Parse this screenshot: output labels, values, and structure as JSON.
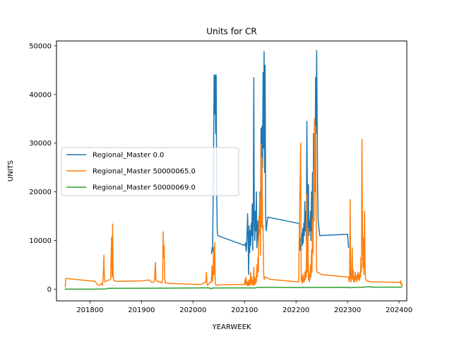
{
  "chart_data": {
    "type": "line",
    "title": "Units for CR",
    "xlabel": "YEARWEEK",
    "ylabel": "UNITS",
    "xlim": [
      201735,
      202415
    ],
    "ylim": [
      -2400,
      51000
    ],
    "xticks": [
      201800,
      201900,
      202000,
      202100,
      202200,
      202300,
      202400
    ],
    "xtick_labels": [
      "201800",
      "201900",
      "202000",
      "202100",
      "202200",
      "202300",
      "202400"
    ],
    "yticks": [
      0,
      10000,
      20000,
      30000,
      40000,
      50000
    ],
    "ytick_labels": [
      "0",
      "10000",
      "20000",
      "30000",
      "40000",
      "50000"
    ],
    "grid": false,
    "legend_position": "center-left",
    "series": [
      {
        "name": "Regional_Master 0.0",
        "color": "#1f77b4",
        "points": [
          [
            202036,
            7200
          ],
          [
            202037,
            8500
          ],
          [
            202038,
            7800
          ],
          [
            202039,
            18000
          ],
          [
            202040,
            30000
          ],
          [
            202041,
            44000
          ],
          [
            202042,
            36000
          ],
          [
            202043,
            44000
          ],
          [
            202044,
            32000
          ],
          [
            202045,
            44000
          ],
          [
            202046,
            20000
          ],
          [
            202047,
            12000
          ],
          [
            202048,
            11000
          ],
          [
            202100,
            9000
          ],
          [
            202102,
            9500
          ],
          [
            202103,
            7800
          ],
          [
            202104,
            8700
          ],
          [
            202105,
            12000
          ],
          [
            202106,
            15500
          ],
          [
            202107,
            10000
          ],
          [
            202108,
            3000
          ],
          [
            202109,
            13000
          ],
          [
            202110,
            7500
          ],
          [
            202111,
            12000
          ],
          [
            202112,
            9000
          ],
          [
            202113,
            13500
          ],
          [
            202114,
            11000
          ],
          [
            202115,
            17500
          ],
          [
            202116,
            8000
          ],
          [
            202117,
            16000
          ],
          [
            202118,
            43500
          ],
          [
            202119,
            13000
          ],
          [
            202120,
            10000
          ],
          [
            202121,
            16000
          ],
          [
            202122,
            12000
          ],
          [
            202123,
            20000
          ],
          [
            202124,
            8500
          ],
          [
            202125,
            11000
          ],
          [
            202126,
            14000
          ],
          [
            202127,
            10000
          ],
          [
            202128,
            12000
          ],
          [
            202129,
            16000
          ],
          [
            202130,
            20000
          ],
          [
            202131,
            13000
          ],
          [
            202132,
            33000
          ],
          [
            202133,
            20000
          ],
          [
            202134,
            33500
          ],
          [
            202135,
            25000
          ],
          [
            202136,
            44500
          ],
          [
            202137,
            29000
          ],
          [
            202138,
            48800
          ],
          [
            202139,
            24000
          ],
          [
            202140,
            46000
          ],
          [
            202141,
            15000
          ],
          [
            202142,
            12000
          ],
          [
            202145,
            14800
          ],
          [
            202206,
            13500
          ],
          [
            202207,
            10000
          ],
          [
            202208,
            8000
          ],
          [
            202209,
            10500
          ],
          [
            202210,
            8000
          ],
          [
            202211,
            11500
          ],
          [
            202212,
            9000
          ],
          [
            202213,
            12500
          ],
          [
            202214,
            9500
          ],
          [
            202215,
            13500
          ],
          [
            202216,
            11000
          ],
          [
            202217,
            18000
          ],
          [
            202218,
            12000
          ],
          [
            202219,
            16000
          ],
          [
            202220,
            10000
          ],
          [
            202221,
            34500
          ],
          [
            202222,
            20000
          ],
          [
            202223,
            12500
          ],
          [
            202224,
            21500
          ],
          [
            202225,
            11000
          ],
          [
            202226,
            14000
          ],
          [
            202227,
            12000
          ],
          [
            202228,
            16000
          ],
          [
            202229,
            10000
          ],
          [
            202230,
            20000
          ],
          [
            202231,
            12000
          ],
          [
            202232,
            24000
          ],
          [
            202233,
            13000
          ],
          [
            202234,
            32000
          ],
          [
            202235,
            20000
          ],
          [
            202236,
            35000
          ],
          [
            202237,
            22000
          ],
          [
            202238,
            43500
          ],
          [
            202239,
            32000
          ],
          [
            202240,
            49000
          ],
          [
            202241,
            35000
          ],
          [
            202242,
            19000
          ],
          [
            202243,
            14000
          ],
          [
            202246,
            11000
          ],
          [
            202300,
            11300
          ],
          [
            202302,
            8500
          ]
        ]
      },
      {
        "name": "Regional_Master 50000065.0",
        "color": "#ff7f0e",
        "points": [
          [
            201751,
            400
          ],
          [
            201752,
            500
          ],
          [
            201753,
            2200
          ],
          [
            201810,
            1600
          ],
          [
            201815,
            900
          ],
          [
            201818,
            800
          ],
          [
            201820,
            900
          ],
          [
            201822,
            1200
          ],
          [
            201824,
            800
          ],
          [
            201825,
            1500
          ],
          [
            201826,
            3500
          ],
          [
            201827,
            7000
          ],
          [
            201828,
            2200
          ],
          [
            201829,
            1500
          ],
          [
            201835,
            1800
          ],
          [
            201840,
            2000
          ],
          [
            201841,
            6500
          ],
          [
            201842,
            10700
          ],
          [
            201843,
            2500
          ],
          [
            201844,
            13400
          ],
          [
            201845,
            3000
          ],
          [
            201846,
            1800
          ],
          [
            201850,
            1600
          ],
          [
            201901,
            1700
          ],
          [
            201915,
            1900
          ],
          [
            201920,
            1400
          ],
          [
            201925,
            1500
          ],
          [
            201926,
            3500
          ],
          [
            201927,
            5500
          ],
          [
            201928,
            2000
          ],
          [
            201930,
            1600
          ],
          [
            201935,
            1500
          ],
          [
            201940,
            1300
          ],
          [
            201941,
            2000
          ],
          [
            201942,
            11800
          ],
          [
            201943,
            6500
          ],
          [
            201944,
            9000
          ],
          [
            201945,
            2000
          ],
          [
            201946,
            1300
          ],
          [
            201952,
            1200
          ],
          [
            202005,
            1000
          ],
          [
            202015,
            1000
          ],
          [
            202020,
            1200
          ],
          [
            202025,
            1500
          ],
          [
            202026,
            3500
          ],
          [
            202027,
            1200
          ],
          [
            202028,
            800
          ],
          [
            202032,
            1200
          ],
          [
            202035,
            1500
          ],
          [
            202036,
            2500
          ],
          [
            202037,
            4800
          ],
          [
            202038,
            1500
          ],
          [
            202039,
            3000
          ],
          [
            202040,
            8600
          ],
          [
            202041,
            3000
          ],
          [
            202042,
            9600
          ],
          [
            202043,
            2500
          ],
          [
            202044,
            900
          ],
          [
            202047,
            800
          ],
          [
            202052,
            900
          ],
          [
            202100,
            1000
          ],
          [
            202101,
            2000
          ],
          [
            202102,
            900
          ],
          [
            202103,
            2500
          ],
          [
            202104,
            1200
          ],
          [
            202105,
            800
          ],
          [
            202106,
            1500
          ],
          [
            202107,
            700
          ],
          [
            202108,
            1800
          ],
          [
            202109,
            900
          ],
          [
            202110,
            2000
          ],
          [
            202111,
            800
          ],
          [
            202112,
            3500
          ],
          [
            202113,
            1200
          ],
          [
            202114,
            2500
          ],
          [
            202115,
            900
          ],
          [
            202116,
            1800
          ],
          [
            202117,
            700
          ],
          [
            202118,
            4500
          ],
          [
            202119,
            1000
          ],
          [
            202120,
            2200
          ],
          [
            202121,
            1000
          ],
          [
            202122,
            2500
          ],
          [
            202123,
            1500
          ],
          [
            202124,
            5000
          ],
          [
            202125,
            2500
          ],
          [
            202126,
            6500
          ],
          [
            202127,
            3500
          ],
          [
            202128,
            15000
          ],
          [
            202129,
            11500
          ],
          [
            202130,
            19000
          ],
          [
            202131,
            7000
          ],
          [
            202132,
            29800
          ],
          [
            202133,
            12800
          ],
          [
            202134,
            27000
          ],
          [
            202135,
            12300
          ],
          [
            202136,
            13000
          ],
          [
            202137,
            3500
          ],
          [
            202138,
            2000
          ],
          [
            202140,
            2500
          ],
          [
            202150,
            2000
          ],
          [
            202205,
            1500
          ],
          [
            202209,
            30000
          ],
          [
            202210,
            1800
          ],
          [
            202211,
            2500
          ],
          [
            202212,
            1200
          ],
          [
            202213,
            3000
          ],
          [
            202214,
            1500
          ],
          [
            202215,
            2500
          ],
          [
            202216,
            1500
          ],
          [
            202217,
            3500
          ],
          [
            202218,
            2000
          ],
          [
            202219,
            4000
          ],
          [
            202220,
            2500
          ],
          [
            202221,
            19500
          ],
          [
            202222,
            3500
          ],
          [
            202223,
            12500
          ],
          [
            202224,
            2000
          ],
          [
            202225,
            3000
          ],
          [
            202226,
            1500
          ],
          [
            202227,
            2500
          ],
          [
            202228,
            5000
          ],
          [
            202229,
            2500
          ],
          [
            202230,
            8000
          ],
          [
            202231,
            3500
          ],
          [
            202232,
            14500
          ],
          [
            202233,
            7500
          ],
          [
            202234,
            24500
          ],
          [
            202235,
            14000
          ],
          [
            202236,
            35000
          ],
          [
            202237,
            20000
          ],
          [
            202238,
            33500
          ],
          [
            202239,
            15000
          ],
          [
            202240,
            4000
          ],
          [
            202241,
            3500
          ],
          [
            202250,
            3000
          ],
          [
            202300,
            2500
          ],
          [
            202302,
            2500
          ],
          [
            202303,
            1500
          ],
          [
            202304,
            2200
          ],
          [
            202305,
            18400
          ],
          [
            202306,
            2500
          ],
          [
            202307,
            1500
          ],
          [
            202308,
            3000
          ],
          [
            202309,
            8500
          ],
          [
            202310,
            2000
          ],
          [
            202311,
            4000
          ],
          [
            202312,
            1500
          ],
          [
            202313,
            2500
          ],
          [
            202314,
            1500
          ],
          [
            202315,
            3500
          ],
          [
            202316,
            2000
          ],
          [
            202317,
            2800
          ],
          [
            202318,
            1500
          ],
          [
            202319,
            2500
          ],
          [
            202320,
            3500
          ],
          [
            202321,
            2000
          ],
          [
            202322,
            3000
          ],
          [
            202323,
            1800
          ],
          [
            202324,
            3500
          ],
          [
            202325,
            2500
          ],
          [
            202326,
            6500
          ],
          [
            202327,
            3500
          ],
          [
            202328,
            30800
          ],
          [
            202329,
            12000
          ],
          [
            202330,
            4500
          ],
          [
            202331,
            10500
          ],
          [
            202332,
            3000
          ],
          [
            202333,
            16000
          ],
          [
            202334,
            4500
          ],
          [
            202335,
            2000
          ],
          [
            202338,
            1700
          ],
          [
            202345,
            1500
          ],
          [
            202400,
            1400
          ],
          [
            202402,
            1300
          ],
          [
            202403,
            1700
          ],
          [
            202404,
            900
          ],
          [
            202405,
            1200
          ],
          [
            202406,
            600
          ]
        ]
      },
      {
        "name": "Regional_Master 50000069.0",
        "color": "#2ca02c",
        "points": [
          [
            201751,
            20
          ],
          [
            201810,
            20
          ],
          [
            201830,
            50
          ],
          [
            201835,
            180
          ],
          [
            201900,
            200
          ],
          [
            201950,
            220
          ],
          [
            202000,
            250
          ],
          [
            202030,
            280
          ],
          [
            202035,
            120
          ],
          [
            202040,
            250
          ],
          [
            202100,
            260
          ],
          [
            202120,
            240
          ],
          [
            202125,
            350
          ],
          [
            202130,
            380
          ],
          [
            202200,
            340
          ],
          [
            202250,
            360
          ],
          [
            202300,
            380
          ],
          [
            202305,
            300
          ],
          [
            202310,
            340
          ],
          [
            202320,
            380
          ],
          [
            202325,
            400
          ],
          [
            202330,
            420
          ],
          [
            202335,
            450
          ],
          [
            202340,
            500
          ],
          [
            202350,
            420
          ],
          [
            202400,
            420
          ],
          [
            202406,
            430
          ]
        ]
      }
    ]
  }
}
